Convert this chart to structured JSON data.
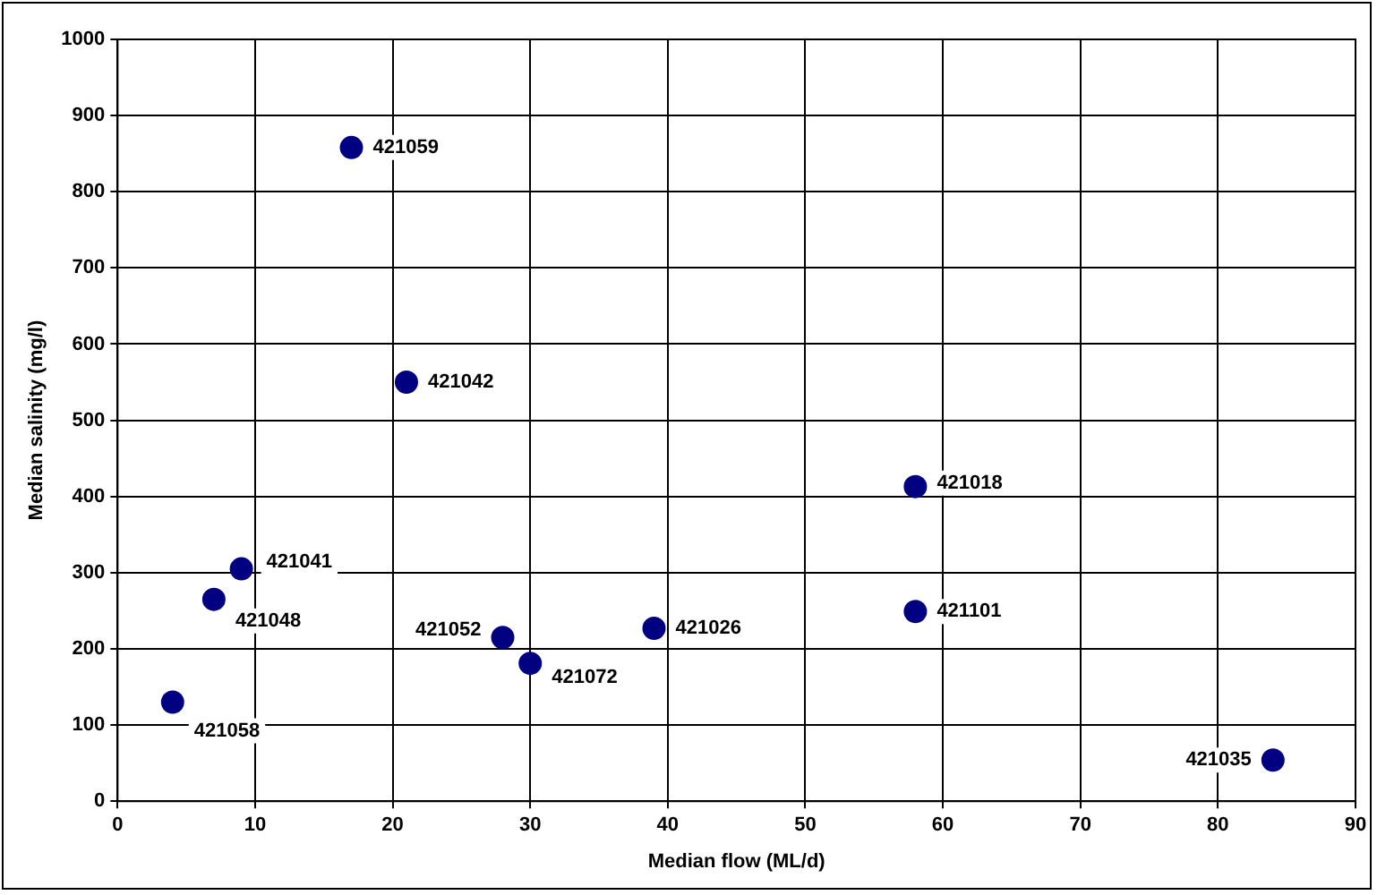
{
  "chart_data": {
    "type": "scatter",
    "xlabel": "Median flow (ML/d)",
    "ylabel": "Median salinity (mg/l)",
    "x": [
      4,
      7,
      9,
      17,
      21,
      28,
      30,
      39,
      58,
      58,
      84
    ],
    "series": [
      {
        "color": "#000080",
        "values": [
          130,
          265,
          305,
          858,
          550,
          215,
          181,
          227,
          413,
          249,
          54
        ]
      }
    ],
    "xlim": [
      0,
      90
    ],
    "xticks": [
      0,
      10,
      20,
      30,
      40,
      50,
      60,
      70,
      80,
      90
    ],
    "ylim": [
      0,
      1000
    ],
    "yticks": [
      0,
      100,
      200,
      300,
      400,
      500,
      600,
      700,
      800,
      900,
      1000
    ],
    "grid": true,
    "legend": false,
    "marker": "circle",
    "annotations": [
      {
        "text": "421058",
        "x": 4,
        "y": 130
      },
      {
        "text": "421048",
        "x": 7,
        "y": 265
      },
      {
        "text": "421041",
        "x": 9,
        "y": 305
      },
      {
        "text": "421059",
        "x": 17,
        "y": 858
      },
      {
        "text": "421042",
        "x": 21,
        "y": 550
      },
      {
        "text": "421052",
        "x": 28,
        "y": 215
      },
      {
        "text": "421072",
        "x": 30,
        "y": 181
      },
      {
        "text": "421026",
        "x": 39,
        "y": 227
      },
      {
        "text": "421018",
        "x": 58,
        "y": 413
      },
      {
        "text": "421101",
        "x": 58,
        "y": 249
      },
      {
        "text": "421035",
        "x": 84,
        "y": 54
      }
    ]
  }
}
